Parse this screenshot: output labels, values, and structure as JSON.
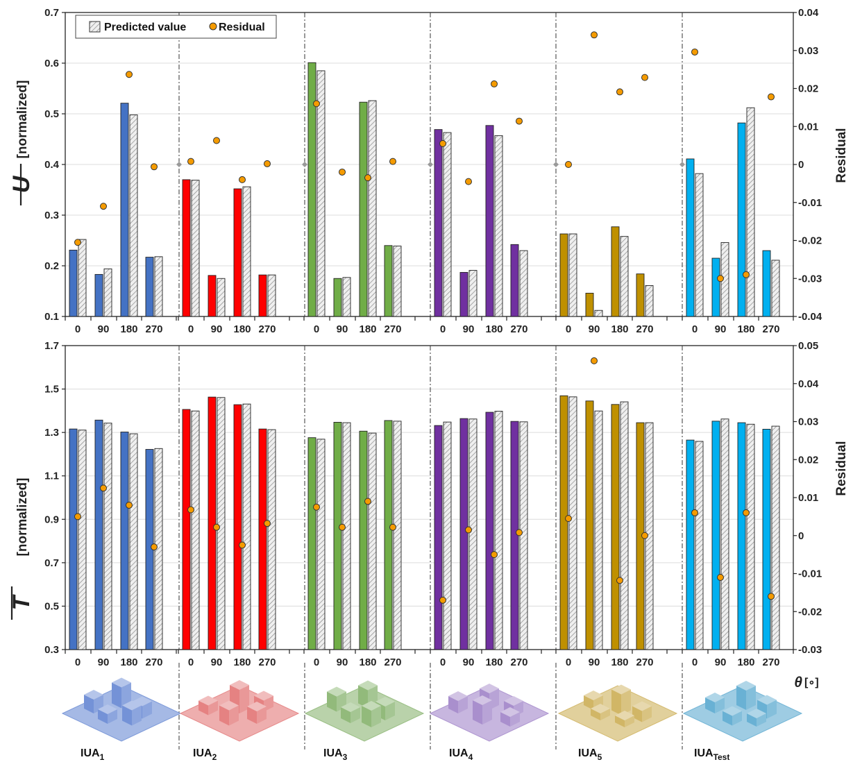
{
  "chart_data": [
    {
      "type": "bar",
      "ylabel_symbol": "U",
      "ylabel_unit": "[normalized]",
      "y2label": "Residual",
      "ylim": [
        0.1,
        0.7
      ],
      "y2lim": [
        -0.04,
        0.04
      ],
      "yticks": [
        "0.1",
        "0.2",
        "0.3",
        "0.4",
        "0.5",
        "0.6",
        "0.7"
      ],
      "y2ticks": [
        "-0.04",
        "-0.03",
        "-0.02",
        "-0.01",
        "0",
        "0.01",
        "0.02",
        "0.03",
        "0.04"
      ],
      "grid": true,
      "legend": {
        "position": "top-left",
        "entries": [
          "Predicted value",
          "Residual"
        ]
      },
      "groups": [
        {
          "name": "IUA",
          "sub": "1",
          "color": "#4472C4",
          "categories": [
            "0",
            "90",
            "180",
            "270"
          ],
          "actual": [
            0.231,
            0.183,
            0.521,
            0.217
          ],
          "predicted": [
            0.252,
            0.194,
            0.498,
            0.218
          ],
          "residual": [
            -0.0205,
            -0.011,
            0.0237,
            -0.0006
          ]
        },
        {
          "name": "IUA",
          "sub": "2",
          "color": "#FF0000",
          "categories": [
            "0",
            "90",
            "180",
            "270"
          ],
          "actual": [
            0.37,
            0.181,
            0.352,
            0.182
          ],
          "predicted": [
            0.369,
            0.175,
            0.356,
            0.182
          ],
          "residual": [
            0.0008,
            0.0063,
            -0.004,
            0.0002
          ]
        },
        {
          "name": "IUA",
          "sub": "3",
          "color": "#70AD47",
          "categories": [
            "0",
            "90",
            "180",
            "270"
          ],
          "actual": [
            0.601,
            0.175,
            0.523,
            0.24
          ],
          "predicted": [
            0.585,
            0.177,
            0.526,
            0.239
          ],
          "residual": [
            0.016,
            -0.002,
            -0.0035,
            0.0008
          ]
        },
        {
          "name": "IUA",
          "sub": "4",
          "color": "#7030A0",
          "categories": [
            "0",
            "90",
            "180",
            "270"
          ],
          "actual": [
            0.469,
            0.187,
            0.477,
            0.242
          ],
          "predicted": [
            0.463,
            0.191,
            0.457,
            0.23
          ],
          "residual": [
            0.0055,
            -0.0045,
            0.0212,
            0.0114
          ]
        },
        {
          "name": "IUA",
          "sub": "5",
          "color": "#BF9000",
          "categories": [
            "0",
            "90",
            "180",
            "270"
          ],
          "actual": [
            0.263,
            0.146,
            0.277,
            0.184
          ],
          "predicted": [
            0.263,
            0.112,
            0.258,
            0.161
          ],
          "residual": [
            0.0,
            0.0341,
            0.0191,
            0.0229
          ]
        },
        {
          "name": "IUA",
          "sub": "Test",
          "color": "#00B0F0",
          "categories": [
            "0",
            "90",
            "180",
            "270"
          ],
          "actual": [
            0.411,
            0.215,
            0.482,
            0.23
          ],
          "predicted": [
            0.382,
            0.246,
            0.512,
            0.211
          ],
          "residual": [
            0.0296,
            -0.03,
            -0.029,
            0.0178
          ]
        }
      ]
    },
    {
      "type": "bar",
      "ylabel_symbol": "T",
      "ylabel_unit": "[normalized]",
      "y2label": "Residual",
      "ylim": [
        0.3,
        1.7
      ],
      "y2lim": [
        -0.03,
        0.05
      ],
      "yticks": [
        "0.3",
        "0.5",
        "0.7",
        "0.9",
        "1.1",
        "1.3",
        "1.5",
        "1.7"
      ],
      "y2ticks": [
        "-0.03",
        "-0.02",
        "-0.01",
        "0",
        "0.01",
        "0.02",
        "0.03",
        "0.04",
        "0.05"
      ],
      "grid": true,
      "xlabel_symbol": "θ",
      "xlabel_unit": "[∘]",
      "groups": [
        {
          "name": "IUA",
          "sub": "1",
          "color": "#4472C4",
          "categories": [
            "0",
            "90",
            "180",
            "270"
          ],
          "actual": [
            1.316,
            1.357,
            1.302,
            1.222
          ],
          "predicted": [
            1.311,
            1.343,
            1.294,
            1.226
          ],
          "residual": [
            0.005,
            0.0125,
            0.008,
            -0.003
          ]
        },
        {
          "name": "IUA",
          "sub": "2",
          "color": "#FF0000",
          "categories": [
            "0",
            "90",
            "180",
            "270"
          ],
          "actual": [
            1.406,
            1.463,
            1.428,
            1.316
          ],
          "predicted": [
            1.399,
            1.461,
            1.431,
            1.313
          ],
          "residual": [
            0.0068,
            0.0022,
            -0.0025,
            0.0032
          ]
        },
        {
          "name": "IUA",
          "sub": "3",
          "color": "#70AD47",
          "categories": [
            "0",
            "90",
            "180",
            "270"
          ],
          "actual": [
            1.276,
            1.347,
            1.306,
            1.355
          ],
          "predicted": [
            1.269,
            1.345,
            1.297,
            1.352
          ],
          "residual": [
            0.0075,
            0.0022,
            0.009,
            0.0022
          ]
        },
        {
          "name": "IUA",
          "sub": "4",
          "color": "#7030A0",
          "categories": [
            "0",
            "90",
            "180",
            "270"
          ],
          "actual": [
            1.332,
            1.364,
            1.393,
            1.351
          ],
          "predicted": [
            1.348,
            1.362,
            1.398,
            1.349
          ],
          "residual": [
            -0.017,
            0.0015,
            -0.005,
            0.0008
          ]
        },
        {
          "name": "IUA",
          "sub": "5",
          "color": "#BF9000",
          "categories": [
            "0",
            "90",
            "180",
            "270"
          ],
          "actual": [
            1.469,
            1.445,
            1.429,
            1.345
          ],
          "predicted": [
            1.464,
            1.399,
            1.441,
            1.345
          ],
          "residual": [
            0.0045,
            0.046,
            -0.0118,
            0.0
          ]
        },
        {
          "name": "IUA",
          "sub": "Test",
          "color": "#00B0F0",
          "categories": [
            "0",
            "90",
            "180",
            "270"
          ],
          "actual": [
            1.265,
            1.352,
            1.345,
            1.315
          ],
          "predicted": [
            1.259,
            1.362,
            1.338,
            1.329
          ],
          "residual": [
            0.006,
            -0.011,
            0.006,
            -0.016
          ]
        }
      ]
    }
  ],
  "residual_color": "#F59B00"
}
